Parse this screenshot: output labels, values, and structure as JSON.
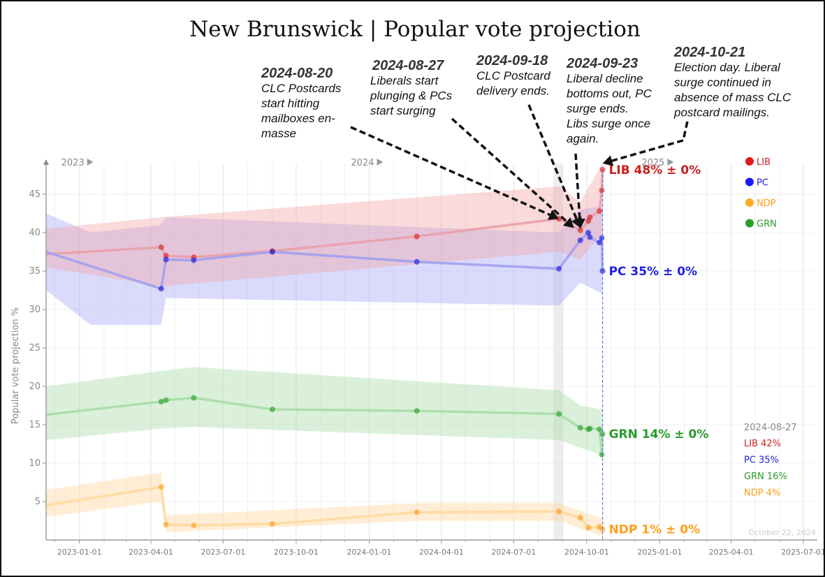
{
  "chart_data": {
    "type": "line",
    "title": "New Brunswick | Popular vote projection",
    "ylabel": "Popular vote projection %",
    "ylim": [
      0,
      49
    ],
    "yticks": [
      5,
      10,
      15,
      20,
      25,
      30,
      35,
      40,
      45
    ],
    "xlim": [
      "2022-11-20",
      "2025-07-15"
    ],
    "xticks": [
      "2023-01-01",
      "2023-04-01",
      "2023-07-01",
      "2023-10-01",
      "2024-01-01",
      "2024-04-01",
      "2024-07-01",
      "2024-10-01",
      "2025-01-01",
      "2025-04-01",
      "2025-07-01"
    ],
    "year_markers": [
      {
        "label": "2023",
        "date": "2023-01-01"
      },
      {
        "label": "2024",
        "date": "2024-01-01"
      },
      {
        "label": "2025",
        "date": "2025-01-01"
      }
    ],
    "grid": true,
    "legend_position": "top-right",
    "election_day": "2024-10-21",
    "highlight_band": [
      "2024-08-20",
      "2024-09-01"
    ],
    "series": [
      {
        "name": "LIB",
        "color": "#d62728",
        "start": {
          "date": "2022-11-20",
          "value": 37.2
        },
        "points": [
          {
            "date": "2023-04-14",
            "value": 38.1
          },
          {
            "date": "2023-04-20",
            "value": 37.0
          },
          {
            "date": "2023-05-25",
            "value": 36.8
          },
          {
            "date": "2023-09-01",
            "value": 37.6
          },
          {
            "date": "2024-03-01",
            "value": 39.5
          },
          {
            "date": "2024-08-27",
            "value": 41.8
          },
          {
            "date": "2024-09-23",
            "value": 40.3
          },
          {
            "date": "2024-10-03",
            "value": 41.5
          },
          {
            "date": "2024-10-05",
            "value": 42.0
          },
          {
            "date": "2024-10-17",
            "value": 42.8
          },
          {
            "date": "2024-10-20",
            "value": 45.5
          },
          {
            "date": "2024-10-21",
            "value": 48.2
          }
        ],
        "band": [
          [
            "2022-11-20",
            35.5,
            40.5
          ],
          [
            "2023-04-14",
            33.0,
            42.0
          ],
          [
            "2024-08-27",
            37.5,
            46.0
          ],
          [
            "2024-09-23",
            36.5,
            44.0
          ],
          [
            "2024-10-21",
            40.0,
            49.0
          ]
        ]
      },
      {
        "name": "PC",
        "color": "#1f1fe0",
        "start": {
          "date": "2022-11-20",
          "value": 37.5
        },
        "points": [
          {
            "date": "2023-04-14",
            "value": 32.7
          },
          {
            "date": "2023-04-20",
            "value": 36.5
          },
          {
            "date": "2023-05-25",
            "value": 36.4
          },
          {
            "date": "2023-09-01",
            "value": 37.5
          },
          {
            "date": "2024-03-01",
            "value": 36.2
          },
          {
            "date": "2024-08-27",
            "value": 35.3
          },
          {
            "date": "2024-09-23",
            "value": 39.0
          },
          {
            "date": "2024-10-03",
            "value": 40.0
          },
          {
            "date": "2024-10-05",
            "value": 39.4
          },
          {
            "date": "2024-10-17",
            "value": 38.7
          },
          {
            "date": "2024-10-20",
            "value": 39.3
          },
          {
            "date": "2024-10-21",
            "value": 35.0
          }
        ],
        "band": [
          [
            "2022-11-20",
            32.5,
            42.5
          ],
          [
            "2023-01-15",
            28.0,
            40.0
          ],
          [
            "2023-04-14",
            28.0,
            41.0
          ],
          [
            "2023-04-20",
            31.5,
            42.0
          ],
          [
            "2024-08-27",
            30.5,
            40.0
          ],
          [
            "2024-09-23",
            33.5,
            43.0
          ],
          [
            "2024-10-21",
            32.0,
            43.5
          ]
        ]
      },
      {
        "name": "GRN",
        "color": "#2ca02c",
        "start": {
          "date": "2022-11-20",
          "value": 16.3
        },
        "points": [
          {
            "date": "2023-04-14",
            "value": 18.0
          },
          {
            "date": "2023-04-20",
            "value": 18.2
          },
          {
            "date": "2023-05-25",
            "value": 18.5
          },
          {
            "date": "2023-09-01",
            "value": 17.0
          },
          {
            "date": "2024-03-01",
            "value": 16.8
          },
          {
            "date": "2024-08-27",
            "value": 16.4
          },
          {
            "date": "2024-09-23",
            "value": 14.6
          },
          {
            "date": "2024-10-03",
            "value": 14.4
          },
          {
            "date": "2024-10-05",
            "value": 14.5
          },
          {
            "date": "2024-10-17",
            "value": 14.4
          },
          {
            "date": "2024-10-20",
            "value": 11.1
          },
          {
            "date": "2024-10-21",
            "value": 13.8
          }
        ],
        "band": [
          [
            "2022-11-20",
            13.0,
            20.0
          ],
          [
            "2023-04-14",
            14.5,
            22.0
          ],
          [
            "2023-05-25",
            14.7,
            22.5
          ],
          [
            "2024-08-27",
            13.0,
            19.5
          ],
          [
            "2024-09-23",
            12.0,
            17.5
          ],
          [
            "2024-10-21",
            11.0,
            17.0
          ]
        ]
      },
      {
        "name": "NDP",
        "color": "#ff9e1b",
        "start": {
          "date": "2022-11-20",
          "value": 4.5
        },
        "points": [
          {
            "date": "2023-04-14",
            "value": 6.9
          },
          {
            "date": "2023-04-20",
            "value": 2.0
          },
          {
            "date": "2023-05-25",
            "value": 1.9
          },
          {
            "date": "2023-09-01",
            "value": 2.1
          },
          {
            "date": "2024-03-01",
            "value": 3.6
          },
          {
            "date": "2024-08-27",
            "value": 3.7
          },
          {
            "date": "2024-09-23",
            "value": 2.9
          },
          {
            "date": "2024-10-03",
            "value": 1.6
          },
          {
            "date": "2024-10-17",
            "value": 1.7
          },
          {
            "date": "2024-10-21",
            "value": 1.4
          }
        ],
        "band": [
          [
            "2022-11-20",
            3.0,
            6.5
          ],
          [
            "2023-04-14",
            5.0,
            8.8
          ],
          [
            "2023-04-20",
            1.0,
            3.2
          ],
          [
            "2024-03-01",
            2.5,
            4.8
          ],
          [
            "2024-08-27",
            2.5,
            4.8
          ],
          [
            "2024-10-21",
            0.5,
            2.8
          ]
        ]
      }
    ],
    "end_labels": [
      {
        "party": "LIB",
        "text": "LIB 48% ± 0%"
      },
      {
        "party": "PC",
        "text": "PC 35% ± 0%"
      },
      {
        "party": "GRN",
        "text": "GRN 14% ± 0%"
      },
      {
        "party": "NDP",
        "text": "NDP 1% ± 0%"
      }
    ],
    "legend": [
      "LIB",
      "PC",
      "NDP",
      "GRN"
    ],
    "snapshot": {
      "date": "2024-08-27",
      "rows": [
        {
          "party": "LIB",
          "text": "LIB 42%"
        },
        {
          "party": "PC",
          "text": "PC 35%"
        },
        {
          "party": "GRN",
          "text": "GRN 16%"
        },
        {
          "party": "NDP",
          "text": "NDP 4%"
        }
      ]
    },
    "annotations": [
      {
        "date": "2024-08-20",
        "lines": [
          "CLC Postcards",
          "start hitting",
          "mailboxes en-",
          "masse"
        ],
        "target": {
          "date": "2024-08-27",
          "value": 41.8
        }
      },
      {
        "date": "2024-08-27",
        "lines": [
          "Liberals start",
          "plunging & PCs",
          "start surging"
        ],
        "target": {
          "date": "2024-09-15",
          "value": 40.6
        }
      },
      {
        "date": "2024-09-18",
        "lines": [
          "CLC Postcard",
          "delivery ends."
        ],
        "target": {
          "date": "2024-09-23",
          "value": 40.6
        }
      },
      {
        "date": "2024-09-23",
        "lines": [
          "Liberal decline",
          "bottoms out, PC",
          "surge ends.",
          "Libs surge once",
          "again."
        ],
        "target": {
          "date": "2024-09-23",
          "value": 40.5
        }
      },
      {
        "date": "2024-10-21",
        "lines": [
          "Election day. Liberal",
          "surge continued in",
          "absence of mass CLC",
          "postcard mailings."
        ],
        "target": {
          "date": "2024-10-21",
          "value": 49.0
        }
      }
    ],
    "footer": "October 22, 2024"
  },
  "colors": {
    "LIB": "#d62728",
    "PC": "#1f1fe0",
    "GRN": "#2ca02c",
    "NDP": "#ff9e1b",
    "LIB_line": "#e8a0a8",
    "PC_line": "#a0a0f0",
    "GRN_line": "#a8dca8",
    "NDP_line": "#ffd9a0",
    "axis": "#888888"
  }
}
